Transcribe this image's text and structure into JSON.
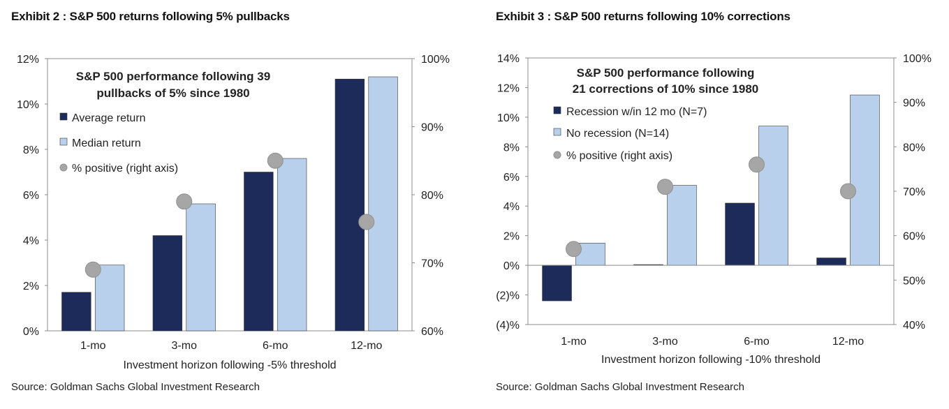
{
  "charts": [
    {
      "exhibit_title": "Exhibit 2 : S&P 500 returns following 5% pullbacks",
      "source": "Source: Goldman Sachs Global Investment Research"
    },
    {
      "exhibit_title": "Exhibit 3 : S&P 500 returns following 10% corrections",
      "source": "Source: Goldman Sachs Global Investment Research"
    }
  ],
  "chart_data": [
    {
      "type": "bar",
      "title_lines": [
        "S&P 500 performance following 39",
        "pullbacks of 5% since 1980"
      ],
      "categories": [
        "1-mo",
        "3-mo",
        "6-mo",
        "12-mo"
      ],
      "xlabel": "Investment horizon following -5% threshold",
      "ylim": [
        0,
        12
      ],
      "y_ticks": [
        0,
        2,
        4,
        6,
        8,
        10,
        12
      ],
      "y_tick_labels": [
        "0%",
        "2%",
        "4%",
        "6%",
        "8%",
        "10%",
        "12%"
      ],
      "y2lim": [
        60,
        100
      ],
      "y2_ticks": [
        60,
        70,
        80,
        90,
        100
      ],
      "y2_tick_labels": [
        "60%",
        "70%",
        "80%",
        "90%",
        "100%"
      ],
      "series": [
        {
          "name": "Average return",
          "kind": "bar",
          "color": "#1c2b5a",
          "values": [
            1.7,
            4.2,
            7.0,
            11.1
          ]
        },
        {
          "name": "Median return",
          "kind": "bar",
          "color": "#b8d0ec",
          "values": [
            2.9,
            5.6,
            7.6,
            11.2
          ]
        },
        {
          "name": "% positive (right axis)",
          "kind": "marker",
          "axis": "right",
          "color": "#a6a6a6",
          "values": [
            69,
            79,
            85,
            76
          ]
        }
      ],
      "legend_position": "top-left",
      "grid": false
    },
    {
      "type": "bar",
      "title_lines": [
        "S&P 500 performance following",
        "21 corrections of 10% since 1980"
      ],
      "categories": [
        "1-mo",
        "3-mo",
        "6-mo",
        "12-mo"
      ],
      "xlabel": "Investment horizon following -10% threshold",
      "ylim": [
        -4,
        14
      ],
      "y_ticks": [
        -4,
        -2,
        0,
        2,
        4,
        6,
        8,
        10,
        12,
        14
      ],
      "y_tick_labels": [
        "(4)%",
        "(2)%",
        "0%",
        "2%",
        "4%",
        "6%",
        "8%",
        "10%",
        "12%",
        "14%"
      ],
      "y2lim": [
        40,
        100
      ],
      "y2_ticks": [
        40,
        50,
        60,
        70,
        80,
        90,
        100
      ],
      "y2_tick_labels": [
        "40%",
        "50%",
        "60%",
        "70%",
        "80%",
        "90%",
        "100%"
      ],
      "series": [
        {
          "name": "Recession w/in 12 mo (N=7)",
          "kind": "bar",
          "color": "#1c2b5a",
          "values": [
            -2.4,
            0.05,
            4.2,
            0.5
          ]
        },
        {
          "name": "No recession (N=14)",
          "kind": "bar",
          "color": "#b8d0ec",
          "values": [
            1.5,
            5.4,
            9.4,
            11.5
          ]
        },
        {
          "name": "% positive (right axis)",
          "kind": "marker",
          "axis": "right",
          "color": "#a6a6a6",
          "values": [
            57,
            71,
            76,
            70
          ]
        }
      ],
      "legend_position": "top-left",
      "grid": false
    }
  ]
}
